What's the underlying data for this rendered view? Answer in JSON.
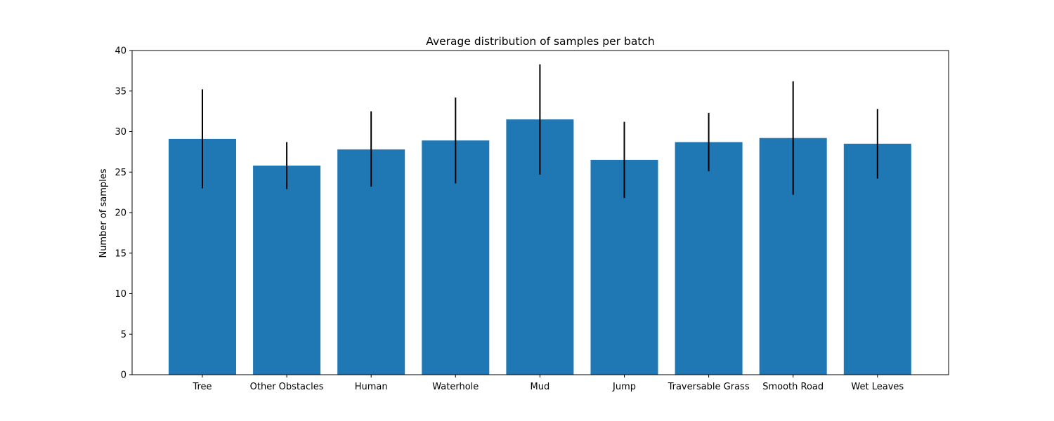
{
  "chart_data": {
    "type": "bar",
    "title": "Average distribution of samples per batch",
    "xlabel": "",
    "ylabel": "Number of samples",
    "categories": [
      "Tree",
      "Other Obstacles",
      "Human",
      "Waterhole",
      "Mud",
      "Jump",
      "Traversable Grass",
      "Smooth Road",
      "Wet Leaves"
    ],
    "values": [
      29.1,
      25.8,
      27.8,
      28.9,
      31.5,
      26.5,
      28.7,
      29.2,
      28.5
    ],
    "error_low": [
      23.0,
      22.9,
      23.2,
      23.6,
      24.7,
      21.8,
      25.1,
      22.2,
      24.2
    ],
    "error_high": [
      35.2,
      28.7,
      32.5,
      34.2,
      38.3,
      31.2,
      32.3,
      36.2,
      32.8
    ],
    "ylim": [
      0,
      40
    ],
    "yticks": [
      0,
      5,
      10,
      15,
      20,
      25,
      30,
      35,
      40
    ],
    "grid": false,
    "colors": {
      "bar": "#1f77b4",
      "error_bar": "#000000",
      "axes": "#000000"
    }
  }
}
